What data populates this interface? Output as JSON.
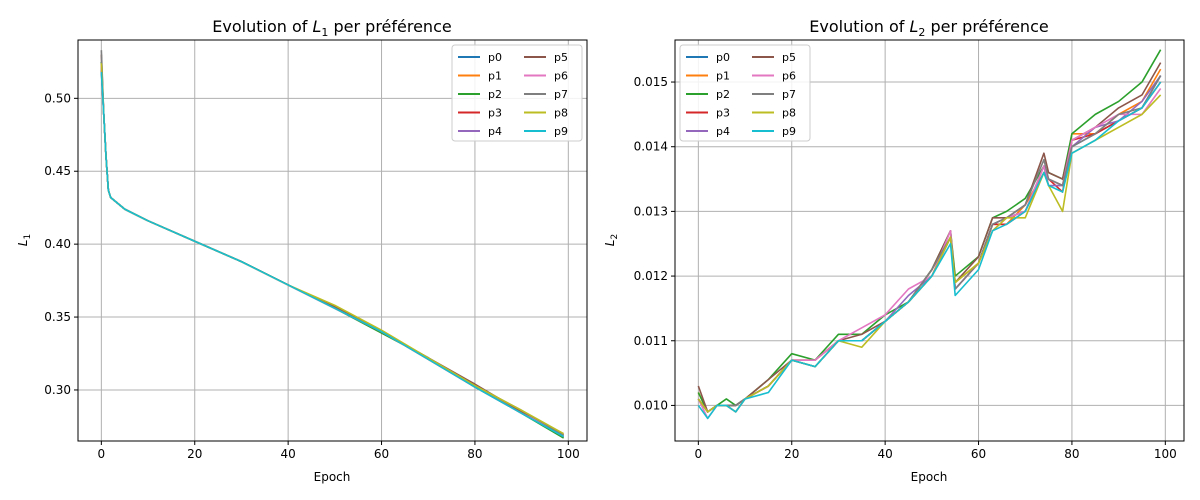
{
  "chart_data": [
    {
      "type": "line",
      "title": "Evolution of L1 per préférence",
      "title_prefix": "Evolution of ",
      "title_var": "L",
      "title_sub": "1",
      "title_suffix": " per préférence",
      "xlabel": "Epoch",
      "ylabel_var": "L",
      "ylabel_sub": "1",
      "xlim": [
        -5,
        104
      ],
      "ylim": [
        0.265,
        0.54
      ],
      "xticks": [
        0,
        20,
        40,
        60,
        80,
        100
      ],
      "xtick_labels": [
        "0",
        "20",
        "40",
        "60",
        "80",
        "100"
      ],
      "yticks": [
        0.3,
        0.35,
        0.4,
        0.45,
        0.5
      ],
      "ytick_labels": [
        "0.30",
        "0.35",
        "0.40",
        "0.45",
        "0.50"
      ],
      "grid": true,
      "legend": "top-right",
      "legend_columns": 2,
      "x_points": [
        0,
        0.5,
        1,
        1.5,
        2,
        5,
        10,
        20,
        30,
        40,
        50,
        60,
        70,
        80,
        90,
        99
      ],
      "series": [
        {
          "name": "p0",
          "values": [
            0.52,
            0.49,
            0.46,
            0.437,
            0.432,
            0.424,
            0.416,
            0.402,
            0.388,
            0.372,
            0.356,
            0.34,
            0.322,
            0.302,
            0.284,
            0.268
          ]
        },
        {
          "name": "p1",
          "values": [
            0.522,
            0.49,
            0.46,
            0.437,
            0.432,
            0.424,
            0.416,
            0.402,
            0.388,
            0.372,
            0.357,
            0.34,
            0.321,
            0.303,
            0.285,
            0.269
          ]
        },
        {
          "name": "p2",
          "values": [
            0.525,
            0.49,
            0.46,
            0.437,
            0.432,
            0.424,
            0.416,
            0.402,
            0.388,
            0.372,
            0.356,
            0.339,
            0.322,
            0.302,
            0.284,
            0.267
          ]
        },
        {
          "name": "p3",
          "values": [
            0.519,
            0.49,
            0.46,
            0.437,
            0.432,
            0.424,
            0.416,
            0.402,
            0.388,
            0.372,
            0.356,
            0.34,
            0.321,
            0.302,
            0.285,
            0.268
          ]
        },
        {
          "name": "p4",
          "values": [
            0.521,
            0.49,
            0.46,
            0.437,
            0.432,
            0.424,
            0.416,
            0.402,
            0.388,
            0.372,
            0.356,
            0.34,
            0.322,
            0.303,
            0.284,
            0.269
          ]
        },
        {
          "name": "p5",
          "values": [
            0.53,
            0.49,
            0.46,
            0.437,
            0.432,
            0.424,
            0.416,
            0.402,
            0.388,
            0.372,
            0.357,
            0.34,
            0.322,
            0.304,
            0.285,
            0.268
          ]
        },
        {
          "name": "p6",
          "values": [
            0.523,
            0.49,
            0.46,
            0.437,
            0.432,
            0.424,
            0.416,
            0.402,
            0.388,
            0.372,
            0.356,
            0.34,
            0.321,
            0.302,
            0.284,
            0.27
          ]
        },
        {
          "name": "p7",
          "values": [
            0.533,
            0.49,
            0.46,
            0.437,
            0.432,
            0.424,
            0.416,
            0.402,
            0.388,
            0.372,
            0.356,
            0.34,
            0.322,
            0.303,
            0.286,
            0.269
          ]
        },
        {
          "name": "p8",
          "values": [
            0.524,
            0.49,
            0.46,
            0.437,
            0.432,
            0.424,
            0.416,
            0.402,
            0.388,
            0.372,
            0.358,
            0.341,
            0.322,
            0.303,
            0.286,
            0.27
          ]
        },
        {
          "name": "p9",
          "values": [
            0.518,
            0.49,
            0.46,
            0.437,
            0.432,
            0.424,
            0.416,
            0.402,
            0.388,
            0.372,
            0.356,
            0.34,
            0.321,
            0.302,
            0.284,
            0.268
          ]
        }
      ]
    },
    {
      "type": "line",
      "title": "Evolution of L2 per préférence",
      "title_prefix": "Evolution of ",
      "title_var": "L",
      "title_sub": "2",
      "title_suffix": " per préférence",
      "xlabel": "Epoch",
      "ylabel_var": "L",
      "ylabel_sub": "2",
      "xlim": [
        -5,
        104
      ],
      "ylim": [
        0.00945,
        0.01565
      ],
      "xticks": [
        0,
        20,
        40,
        60,
        80,
        100
      ],
      "xtick_labels": [
        "0",
        "20",
        "40",
        "60",
        "80",
        "100"
      ],
      "yticks": [
        0.01,
        0.011,
        0.012,
        0.013,
        0.014,
        0.015
      ],
      "ytick_labels": [
        "0.010",
        "0.011",
        "0.012",
        "0.013",
        "0.014",
        "0.015"
      ],
      "grid": true,
      "legend": "top-left",
      "legend_columns": 2,
      "x_points": [
        0,
        2,
        4,
        6,
        8,
        10,
        15,
        20,
        25,
        30,
        35,
        40,
        45,
        50,
        54,
        55,
        60,
        63,
        66,
        70,
        74,
        75,
        78,
        80,
        85,
        90,
        95,
        99
      ],
      "series": [
        {
          "name": "p0",
          "values": [
            0.0101,
            0.0099,
            0.01,
            0.01,
            0.01,
            0.0101,
            0.0103,
            0.0107,
            0.0106,
            0.011,
            0.011,
            0.0113,
            0.0116,
            0.012,
            0.0126,
            0.0118,
            0.0122,
            0.0128,
            0.0129,
            0.013,
            0.0136,
            0.0135,
            0.0134,
            0.014,
            0.0142,
            0.0144,
            0.0146,
            0.0151
          ]
        },
        {
          "name": "p1",
          "values": [
            0.0102,
            0.0099,
            0.01,
            0.01,
            0.01,
            0.0101,
            0.0103,
            0.0107,
            0.0107,
            0.011,
            0.011,
            0.0113,
            0.0116,
            0.0121,
            0.0126,
            0.0119,
            0.0122,
            0.0128,
            0.0128,
            0.0131,
            0.0136,
            0.0135,
            0.0134,
            0.0142,
            0.0142,
            0.0145,
            0.0147,
            0.0152
          ]
        },
        {
          "name": "p2",
          "values": [
            0.0102,
            0.0099,
            0.01,
            0.0101,
            0.01,
            0.0101,
            0.0104,
            0.0108,
            0.0107,
            0.0111,
            0.0111,
            0.0114,
            0.0116,
            0.0121,
            0.0127,
            0.012,
            0.0123,
            0.0129,
            0.013,
            0.0132,
            0.0137,
            0.0136,
            0.0135,
            0.0142,
            0.0145,
            0.0147,
            0.015,
            0.0155
          ]
        },
        {
          "name": "p3",
          "values": [
            0.0101,
            0.0099,
            0.01,
            0.01,
            0.0099,
            0.0101,
            0.0103,
            0.0107,
            0.0106,
            0.011,
            0.011,
            0.0113,
            0.0116,
            0.012,
            0.0126,
            0.0118,
            0.0122,
            0.0128,
            0.0128,
            0.013,
            0.0136,
            0.0135,
            0.0133,
            0.0141,
            0.0142,
            0.0144,
            0.0146,
            0.015
          ]
        },
        {
          "name": "p4",
          "values": [
            0.0101,
            0.0099,
            0.01,
            0.01,
            0.01,
            0.0101,
            0.0103,
            0.0107,
            0.0106,
            0.011,
            0.011,
            0.0113,
            0.0117,
            0.012,
            0.0126,
            0.0118,
            0.0122,
            0.0128,
            0.0129,
            0.013,
            0.0137,
            0.0134,
            0.0134,
            0.014,
            0.0143,
            0.0144,
            0.0147,
            0.0151
          ]
        },
        {
          "name": "p5",
          "values": [
            0.0103,
            0.0099,
            0.01,
            0.01,
            0.01,
            0.0101,
            0.0104,
            0.0107,
            0.0107,
            0.011,
            0.0111,
            0.0113,
            0.0116,
            0.0121,
            0.0127,
            0.0119,
            0.0123,
            0.0129,
            0.0129,
            0.0131,
            0.0139,
            0.0136,
            0.0135,
            0.0141,
            0.0143,
            0.0146,
            0.0148,
            0.0153
          ]
        },
        {
          "name": "p6",
          "values": [
            0.0101,
            0.0098,
            0.01,
            0.01,
            0.0099,
            0.0101,
            0.0103,
            0.0107,
            0.0107,
            0.011,
            0.0112,
            0.0114,
            0.0118,
            0.012,
            0.0127,
            0.0118,
            0.0122,
            0.0127,
            0.0129,
            0.013,
            0.0137,
            0.0135,
            0.0134,
            0.0141,
            0.0143,
            0.0145,
            0.0145,
            0.0149
          ]
        },
        {
          "name": "p7",
          "values": [
            0.0101,
            0.0099,
            0.01,
            0.01,
            0.01,
            0.0101,
            0.0103,
            0.0107,
            0.0106,
            0.011,
            0.011,
            0.0113,
            0.0116,
            0.0121,
            0.0126,
            0.0118,
            0.0122,
            0.0128,
            0.0129,
            0.0131,
            0.0138,
            0.0135,
            0.0134,
            0.014,
            0.0142,
            0.0145,
            0.0146,
            0.0151
          ]
        },
        {
          "name": "p8",
          "values": [
            0.0101,
            0.0099,
            0.01,
            0.01,
            0.0099,
            0.0101,
            0.0103,
            0.0107,
            0.0106,
            0.011,
            0.0109,
            0.0113,
            0.0116,
            0.012,
            0.0126,
            0.0119,
            0.0122,
            0.0127,
            0.0129,
            0.0129,
            0.0136,
            0.0134,
            0.013,
            0.0139,
            0.0141,
            0.0143,
            0.0145,
            0.0148
          ]
        },
        {
          "name": "p9",
          "values": [
            0.01,
            0.0098,
            0.01,
            0.01,
            0.0099,
            0.0101,
            0.0102,
            0.0107,
            0.0106,
            0.011,
            0.011,
            0.0113,
            0.0116,
            0.012,
            0.0125,
            0.0117,
            0.0121,
            0.0127,
            0.0128,
            0.013,
            0.0136,
            0.0134,
            0.0133,
            0.0139,
            0.0141,
            0.0144,
            0.0146,
            0.015
          ]
        }
      ]
    }
  ],
  "series_colors": [
    "#1f77b4",
    "#ff7f0e",
    "#2ca02c",
    "#d62728",
    "#9467bd",
    "#8c564b",
    "#e377c2",
    "#7f7f7f",
    "#bcbd22",
    "#17becf"
  ]
}
